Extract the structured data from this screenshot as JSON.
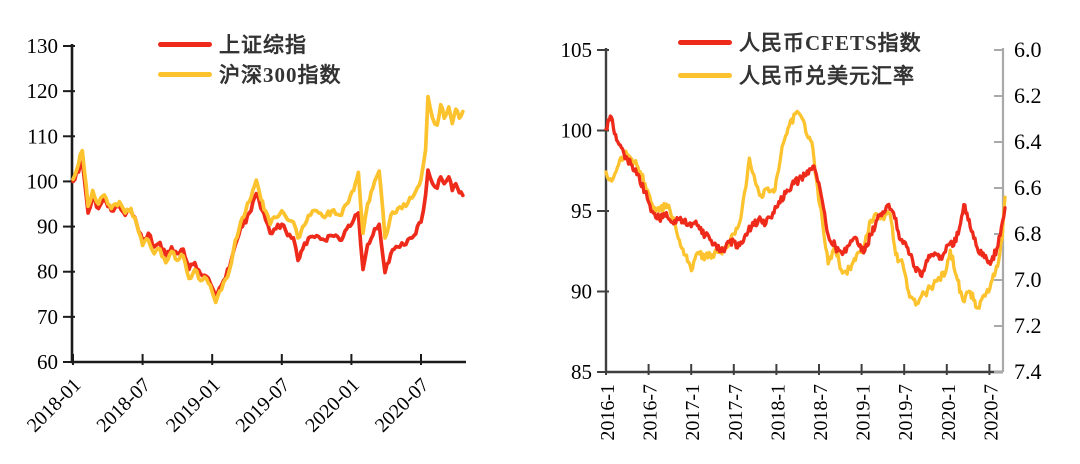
{
  "figure": {
    "background": "#ffffff"
  },
  "chart_data": [
    {
      "type": "line",
      "title": "",
      "xlabel": "",
      "ylabel": "",
      "x_unit": "months since 2018-01",
      "x_tick_labels": [
        "2018-01",
        "2018-07",
        "2019-01",
        "2019-07",
        "2020-01",
        "2020-07"
      ],
      "x_tick_positions_months": [
        0,
        6,
        12,
        18,
        24,
        30
      ],
      "ylim": [
        60,
        130
      ],
      "y_ticks": [
        60,
        70,
        80,
        90,
        100,
        110,
        120,
        130
      ],
      "grid": false,
      "legend_position": "top-center",
      "series": [
        {
          "name": "上证综指",
          "color": "#ee2a1b",
          "axis": "left",
          "points": [
            [
              0,
              100
            ],
            [
              0.8,
              104.3
            ],
            [
              1.3,
              93
            ],
            [
              1.7,
              96.5
            ],
            [
              2.2,
              94
            ],
            [
              2.7,
              96
            ],
            [
              3.3,
              93.5
            ],
            [
              4,
              94.5
            ],
            [
              4.5,
              92.5
            ],
            [
              5,
              93.5
            ],
            [
              5.5,
              90.5
            ],
            [
              6,
              87
            ],
            [
              6.5,
              88.5
            ],
            [
              7,
              85.5
            ],
            [
              7.5,
              86.5
            ],
            [
              8,
              83.5
            ],
            [
              8.5,
              85.5
            ],
            [
              9,
              84
            ],
            [
              9.5,
              85
            ],
            [
              10,
              80.5
            ],
            [
              10.5,
              82
            ],
            [
              11,
              79.5
            ],
            [
              11.5,
              79
            ],
            [
              12,
              76.5
            ],
            [
              12.3,
              74.5
            ],
            [
              12.8,
              77
            ],
            [
              13.5,
              81
            ],
            [
              14,
              86
            ],
            [
              14.6,
              90
            ],
            [
              15.2,
              93
            ],
            [
              15.8,
              97.3
            ],
            [
              16.2,
              94
            ],
            [
              16.6,
              91.5
            ],
            [
              17,
              88.5
            ],
            [
              17.5,
              89.5
            ],
            [
              18,
              90.5
            ],
            [
              18.5,
              88
            ],
            [
              19,
              87.5
            ],
            [
              19.4,
              82.5
            ],
            [
              19.8,
              85
            ],
            [
              20.3,
              87.5
            ],
            [
              21,
              88
            ],
            [
              21.7,
              87
            ],
            [
              22.3,
              88
            ],
            [
              23,
              87
            ],
            [
              23.6,
              89.5
            ],
            [
              24.2,
              91.5
            ],
            [
              24.6,
              93
            ],
            [
              25,
              80.5
            ],
            [
              25.4,
              86
            ],
            [
              26,
              89.5
            ],
            [
              26.4,
              90.5
            ],
            [
              26.9,
              79.8
            ],
            [
              27.4,
              84
            ],
            [
              28,
              85.5
            ],
            [
              28.7,
              86
            ],
            [
              29.4,
              88
            ],
            [
              30,
              91
            ],
            [
              30.4,
              97
            ],
            [
              30.6,
              102.5
            ],
            [
              31,
              99.5
            ],
            [
              31.4,
              98.5
            ],
            [
              31.7,
              101
            ],
            [
              32,
              99.5
            ],
            [
              32.4,
              101
            ],
            [
              32.7,
              98
            ],
            [
              33,
              99.5
            ],
            [
              33.3,
              97.5
            ],
            [
              33.6,
              96.9
            ]
          ]
        },
        {
          "name": "沪深300指数",
          "color": "#fdc32e",
          "axis": "left",
          "points": [
            [
              0,
              100.5
            ],
            [
              0.8,
              106.8
            ],
            [
              1.3,
              94.5
            ],
            [
              1.7,
              98
            ],
            [
              2.2,
              95
            ],
            [
              2.7,
              97
            ],
            [
              3.3,
              94
            ],
            [
              4,
              95.5
            ],
            [
              4.5,
              93
            ],
            [
              5,
              94
            ],
            [
              5.5,
              90.5
            ],
            [
              6,
              85.8
            ],
            [
              6.5,
              87
            ],
            [
              7,
              84
            ],
            [
              7.5,
              85
            ],
            [
              8,
              82
            ],
            [
              8.5,
              84.5
            ],
            [
              9,
              82.5
            ],
            [
              9.5,
              83.5
            ],
            [
              10,
              78.5
            ],
            [
              10.5,
              80.5
            ],
            [
              11,
              78
            ],
            [
              11.5,
              78.5
            ],
            [
              12,
              75.5
            ],
            [
              12.3,
              73.2
            ],
            [
              12.8,
              76
            ],
            [
              13.5,
              80.5
            ],
            [
              14,
              87
            ],
            [
              14.6,
              92
            ],
            [
              15.2,
              95.5
            ],
            [
              15.8,
              100.3
            ],
            [
              16.2,
              96
            ],
            [
              16.6,
              93.5
            ],
            [
              17,
              90.5
            ],
            [
              17.5,
              92
            ],
            [
              18,
              93.5
            ],
            [
              18.5,
              91.5
            ],
            [
              19,
              91
            ],
            [
              19.4,
              87.5
            ],
            [
              19.8,
              90
            ],
            [
              20.3,
              92.5
            ],
            [
              21,
              93.5
            ],
            [
              21.7,
              92
            ],
            [
              22.3,
              93.5
            ],
            [
              23,
              92.5
            ],
            [
              23.6,
              95
            ],
            [
              24.2,
              98
            ],
            [
              24.6,
              102
            ],
            [
              25,
              88.5
            ],
            [
              25.4,
              95
            ],
            [
              26,
              100
            ],
            [
              26.4,
              102.3
            ],
            [
              26.9,
              87.5
            ],
            [
              27.4,
              92.5
            ],
            [
              28,
              94
            ],
            [
              28.7,
              94.5
            ],
            [
              29.4,
              97
            ],
            [
              30,
              100.5
            ],
            [
              30.4,
              107
            ],
            [
              30.6,
              118.8
            ],
            [
              31,
              114
            ],
            [
              31.4,
              112.5
            ],
            [
              31.7,
              117
            ],
            [
              32,
              114
            ],
            [
              32.4,
              116.5
            ],
            [
              32.7,
              112.8
            ],
            [
              33,
              116
            ],
            [
              33.3,
              114
            ],
            [
              33.6,
              115.5
            ]
          ]
        }
      ]
    },
    {
      "type": "line",
      "title": "",
      "xlabel": "",
      "ylabel": "",
      "x_unit": "months since 2016-01",
      "x_tick_labels": [
        "2016-1",
        "2016-7",
        "2017-1",
        "2017-7",
        "2018-1",
        "2018-7",
        "2019-1",
        "2019-7",
        "2020-1",
        "2020-7"
      ],
      "x_tick_positions_months": [
        0,
        6,
        12,
        18,
        24,
        30,
        36,
        42,
        48,
        54
      ],
      "ylim_left": [
        85,
        105
      ],
      "y_ticks_left": [
        85,
        90,
        95,
        100,
        105
      ],
      "ylim_right": [
        6.0,
        7.4
      ],
      "y_ticks_right": [
        "6.0",
        "6.2",
        "6.4",
        "6.6",
        "6.8",
        "7.0",
        "7.2",
        "7.4"
      ],
      "right_axis_inverted": true,
      "grid": false,
      "legend_position": "top-center",
      "series": [
        {
          "name": "人民币CFETS指数",
          "color": "#ee2a1b",
          "axis": "left",
          "points": [
            [
              0,
              100.1
            ],
            [
              0.6,
              100.9
            ],
            [
              1.5,
              99.4
            ],
            [
              2.5,
              98.6
            ],
            [
              3.5,
              97.9
            ],
            [
              4.5,
              97.3
            ],
            [
              5.5,
              96.2
            ],
            [
              6.5,
              95
            ],
            [
              7.5,
              94.5
            ],
            [
              8.5,
              94.9
            ],
            [
              9.5,
              94.2
            ],
            [
              10.5,
              94.6
            ],
            [
              11.5,
              94.1
            ],
            [
              12.5,
              94.3
            ],
            [
              13.5,
              93.6
            ],
            [
              14.5,
              93.4
            ],
            [
              15.5,
              92.9
            ],
            [
              16.5,
              92.5
            ],
            [
              17.5,
              93.2
            ],
            [
              18.5,
              92.7
            ],
            [
              19.5,
              93.4
            ],
            [
              20.5,
              94
            ],
            [
              21.5,
              94.5
            ],
            [
              22.5,
              94.2
            ],
            [
              23.5,
              94.9
            ],
            [
              24.5,
              95.5
            ],
            [
              25.5,
              96.3
            ],
            [
              26.5,
              96.7
            ],
            [
              27.5,
              97.1
            ],
            [
              28.5,
              97.3
            ],
            [
              29.3,
              97.8
            ],
            [
              30.3,
              96
            ],
            [
              31.3,
              93.5
            ],
            [
              32.3,
              92.8
            ],
            [
              33.3,
              92.3
            ],
            [
              34.3,
              92.9
            ],
            [
              35.3,
              93.3
            ],
            [
              36.3,
              92.4
            ],
            [
              37.3,
              93.5
            ],
            [
              38.5,
              94.7
            ],
            [
              39.5,
              95.3
            ],
            [
              40.5,
              94.9
            ],
            [
              41.5,
              93.2
            ],
            [
              42.5,
              92.7
            ],
            [
              43.5,
              91.5
            ],
            [
              44.3,
              91
            ],
            [
              45.3,
              91.9
            ],
            [
              46.3,
              92.4
            ],
            [
              47.3,
              92
            ],
            [
              48.3,
              92.9
            ],
            [
              49.3,
              93.1
            ],
            [
              50.4,
              95.4
            ],
            [
              51.3,
              94
            ],
            [
              52.3,
              92.7
            ],
            [
              53.3,
              92.1
            ],
            [
              54.3,
              91.9
            ],
            [
              55.2,
              92.8
            ],
            [
              56.2,
              95.2
            ]
          ]
        },
        {
          "name": "人民币兑美元汇率",
          "color": "#fdc32e",
          "axis": "right",
          "points": [
            [
              0,
              6.53
            ],
            [
              0.8,
              6.57
            ],
            [
              1.6,
              6.51
            ],
            [
              2.8,
              6.44
            ],
            [
              3.5,
              6.47
            ],
            [
              4.5,
              6.51
            ],
            [
              5.5,
              6.58
            ],
            [
              6.5,
              6.67
            ],
            [
              7.5,
              6.7
            ],
            [
              8.5,
              6.67
            ],
            [
              9.5,
              6.73
            ],
            [
              10.5,
              6.85
            ],
            [
              11.5,
              6.92
            ],
            [
              12.2,
              6.95
            ],
            [
              13,
              6.88
            ],
            [
              14,
              6.9
            ],
            [
              15,
              6.89
            ],
            [
              16,
              6.88
            ],
            [
              17,
              6.86
            ],
            [
              18,
              6.8
            ],
            [
              19,
              6.73
            ],
            [
              20.2,
              6.47
            ],
            [
              21,
              6.57
            ],
            [
              21.8,
              6.63
            ],
            [
              22.8,
              6.6
            ],
            [
              23.8,
              6.61
            ],
            [
              24.8,
              6.42
            ],
            [
              25.8,
              6.33
            ],
            [
              26.8,
              6.27
            ],
            [
              27.5,
              6.29
            ],
            [
              28.3,
              6.37
            ],
            [
              29,
              6.4
            ],
            [
              29.8,
              6.6
            ],
            [
              30.6,
              6.78
            ],
            [
              31.3,
              6.93
            ],
            [
              32.2,
              6.85
            ],
            [
              33.3,
              6.97
            ],
            [
              34.3,
              6.95
            ],
            [
              35.3,
              6.89
            ],
            [
              36.3,
              6.86
            ],
            [
              37.3,
              6.74
            ],
            [
              38.3,
              6.72
            ],
            [
              39.3,
              6.72
            ],
            [
              40,
              6.71
            ],
            [
              40.8,
              6.89
            ],
            [
              41.8,
              6.93
            ],
            [
              42.6,
              7.05
            ],
            [
              43.8,
              7.1
            ],
            [
              44.8,
              7.06
            ],
            [
              45.8,
              7.03
            ],
            [
              46.8,
              6.99
            ],
            [
              47.8,
              6.97
            ],
            [
              48.5,
              6.87
            ],
            [
              49.5,
              7
            ],
            [
              50.3,
              7.09
            ],
            [
              51.3,
              7.05
            ],
            [
              52.4,
              7.12
            ],
            [
              53.4,
              7.07
            ],
            [
              54.4,
              7
            ],
            [
              55.3,
              6.92
            ],
            [
              55.8,
              6.82
            ],
            [
              56.2,
              6.64
            ]
          ]
        }
      ]
    }
  ]
}
